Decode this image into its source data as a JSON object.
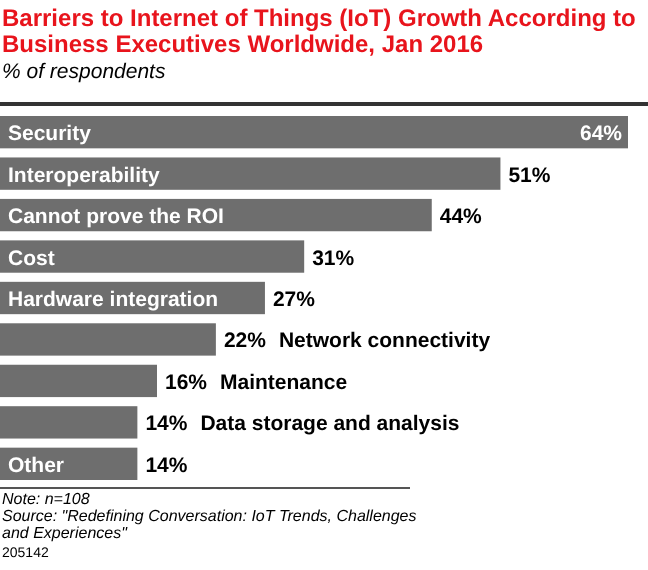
{
  "chart_data": {
    "type": "bar",
    "orientation": "horizontal",
    "title": "Barriers to Internet of Things (IoT) Growth According to Business Executives Worldwide, Jan 2016",
    "subtitle": "% of respondents",
    "categories": [
      "Security",
      "Interoperability",
      "Cannot prove the ROI",
      "Cost",
      "Hardware integration",
      "Network connectivity",
      "Maintenance",
      "Data storage and analysis",
      "Other"
    ],
    "values": [
      64,
      51,
      44,
      31,
      27,
      22,
      16,
      14,
      14
    ],
    "value_labels": [
      "64%",
      "51%",
      "44%",
      "31%",
      "27%",
      "22%",
      "16%",
      "14%",
      "14%"
    ],
    "color": "#6e6e6e",
    "annotations": [
      "Note: n=108",
      "Source: \"Redefining Conversation: IoT Trends, Challenges and Experiences\"",
      "205142"
    ]
  }
}
